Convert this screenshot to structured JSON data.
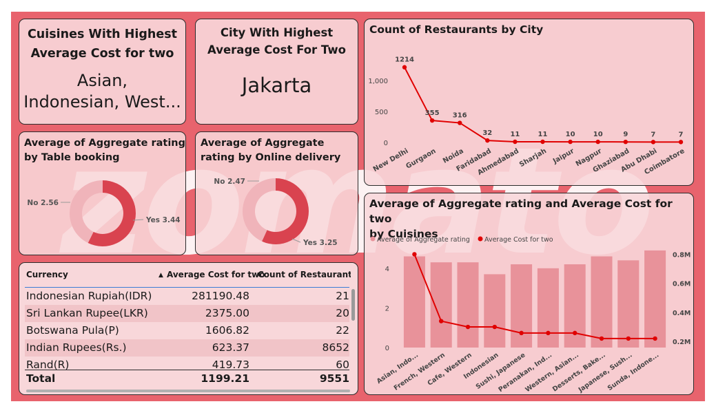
{
  "watermark": {
    "text": "zomato"
  },
  "kpi_cuisine": {
    "title_line1": "Cuisines With Highest",
    "title_line2": "Average Cost for two",
    "value_line1": "Asian,",
    "value_line2": "Indonesian, West..."
  },
  "kpi_city": {
    "title_line1": "City With Highest",
    "title_line2": "Average Cost For Two",
    "value": "Jakarta"
  },
  "colors": {
    "dark_red": "#d9434f",
    "light_pink": "#f0b4ba",
    "line_red": "#e00000",
    "bar": "#e8929a",
    "card": "#f8d7da",
    "canvas": "#e8636d"
  },
  "chart_data": [
    {
      "id": "table_booking",
      "type": "pie",
      "title_line1": "Average of Aggregate rating",
      "title_line2": "by Table booking",
      "slices": [
        {
          "label": "No",
          "value": 2.56,
          "text": "No 2.56"
        },
        {
          "label": "Yes",
          "value": 3.44,
          "text": "Yes 3.44"
        }
      ]
    },
    {
      "id": "online_delivery",
      "type": "pie",
      "title_line1": "Average of Aggregate",
      "title_line2": "rating by Online delivery",
      "slices": [
        {
          "label": "No",
          "value": 2.47,
          "text": "No 2.47"
        },
        {
          "label": "Yes",
          "value": 3.25,
          "text": "Yes 3.25"
        }
      ]
    },
    {
      "id": "restaurants_by_city",
      "type": "line",
      "title": "Count of Restaurants by City",
      "categories": [
        "New Delhi",
        "Gurgaon",
        "Noida",
        "Faridabad",
        "Ahmedabad",
        "Sharjah",
        "Jaipur",
        "Nagpur",
        "Ghaziabad",
        "Abu Dhabi",
        "Coimbatore"
      ],
      "values": [
        1214,
        355,
        316,
        32,
        11,
        11,
        10,
        10,
        9,
        7,
        7
      ],
      "value_labels": [
        "1214",
        "355",
        "316",
        "32",
        "11",
        "11",
        "10",
        "10",
        "9",
        "7",
        "7"
      ],
      "yticks": [
        0,
        500,
        1000
      ],
      "ytick_labels": [
        "0",
        "500",
        "1,000"
      ],
      "ylim": [
        0,
        1300
      ]
    },
    {
      "id": "rating_cost_by_cuisine",
      "type": "bar",
      "title_line1": "Average of Aggregate rating and Average Cost for two",
      "title_line2": "by Cuisines",
      "legend": [
        "Average of Aggregate rating",
        "Average Cost for two"
      ],
      "categories": [
        "Asian, Indo...",
        "French, Western",
        "Cafe, Western",
        "Indonesian",
        "Sushi, Japanese",
        "Peranakan, Ind...",
        "Western, Asian...",
        "Desserts, Bake...",
        "Japanese, Sush...",
        "Sunda, Indone..."
      ],
      "series": [
        {
          "name": "Average of Aggregate rating",
          "type": "bar",
          "values": [
            4.6,
            4.3,
            4.3,
            3.7,
            4.2,
            4.0,
            4.2,
            4.6,
            4.4,
            4.9
          ]
        },
        {
          "name": "Average Cost for two",
          "type": "line",
          "values": [
            800000,
            340000,
            300000,
            300000,
            258000,
            258000,
            258000,
            220000,
            220000,
            220000
          ]
        }
      ],
      "y_left_ticks": [
        0,
        2,
        4
      ],
      "y_left_labels": [
        "0",
        "2",
        "4"
      ],
      "y_left_lim": [
        0,
        5.0
      ],
      "y_right_ticks": [
        200000,
        400000,
        600000,
        800000
      ],
      "y_right_labels": [
        "0.2M",
        "0.4M",
        "0.6M",
        "0.8M"
      ],
      "y_right_lim": [
        158000,
        840000
      ]
    }
  ],
  "table": {
    "columns": [
      "Currency",
      "Average Cost for two",
      "Count of Restaurants"
    ],
    "sort_arrow": "▲",
    "rows": [
      [
        "Indonesian Rupiah(IDR)",
        "281190.48",
        "21"
      ],
      [
        "Sri Lankan Rupee(LKR)",
        "2375.00",
        "20"
      ],
      [
        "Botswana Pula(P)",
        "1606.82",
        "22"
      ],
      [
        "Indian Rupees(Rs.)",
        "623.37",
        "8652"
      ],
      [
        "Rand(R)",
        "419.73",
        "60"
      ]
    ],
    "total": [
      "Total",
      "1199.21",
      "9551"
    ]
  }
}
